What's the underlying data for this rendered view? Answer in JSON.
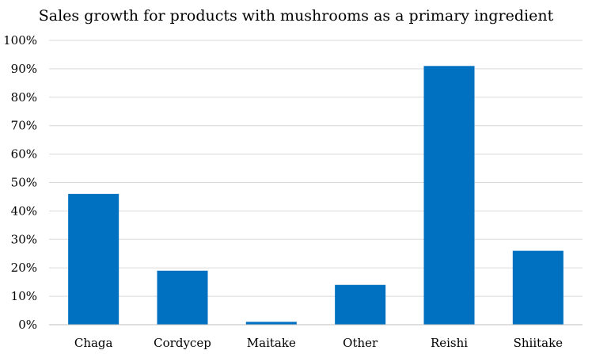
{
  "chart_data": {
    "type": "bar",
    "title": "Sales growth for products with mushrooms as a primary ingredient",
    "xlabel": "",
    "ylabel": "",
    "categories": [
      "Chaga",
      "Cordycep",
      "Maitake",
      "Other",
      "Reishi",
      "Shiitake"
    ],
    "values": [
      46,
      19,
      1,
      14,
      91,
      26
    ],
    "ylim": [
      0,
      100
    ],
    "y_ticks": [
      "0%",
      "10%",
      "20%",
      "30%",
      "40%",
      "50%",
      "60%",
      "70%",
      "80%",
      "90%",
      "100%"
    ],
    "grid": true,
    "legend": "none",
    "bar_color": "#0070c0"
  }
}
